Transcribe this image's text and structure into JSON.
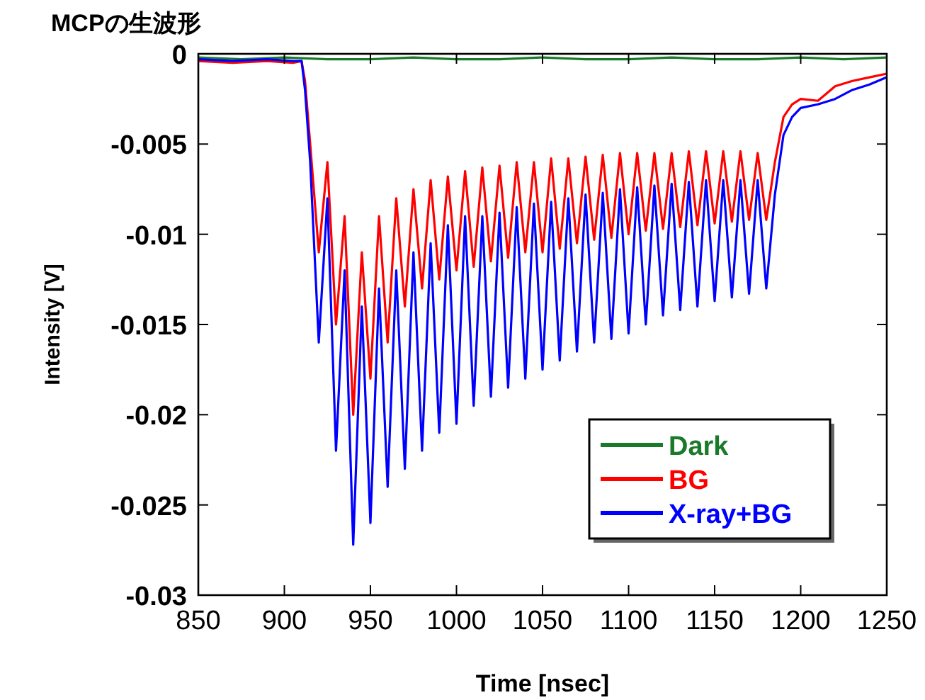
{
  "chart_data": {
    "type": "line",
    "title": "MCPの生波形",
    "xlabel": "Time [nsec]",
    "ylabel": "Intensity [V]",
    "xlim": [
      850,
      1250
    ],
    "ylim": [
      -0.03,
      0
    ],
    "xticks": [
      850,
      900,
      950,
      1000,
      1050,
      1100,
      1150,
      1200,
      1250
    ],
    "yticks": [
      -0.03,
      -0.025,
      -0.02,
      -0.015,
      -0.01,
      -0.005,
      0
    ],
    "legend": "bottom right",
    "x": [
      850,
      870,
      890,
      905,
      910,
      912,
      915,
      920,
      925,
      930,
      935,
      940,
      945,
      950,
      955,
      960,
      965,
      970,
      975,
      980,
      985,
      990,
      995,
      1000,
      1005,
      1010,
      1015,
      1020,
      1025,
      1030,
      1035,
      1040,
      1045,
      1050,
      1055,
      1060,
      1065,
      1070,
      1075,
      1080,
      1085,
      1090,
      1095,
      1100,
      1105,
      1110,
      1115,
      1120,
      1125,
      1130,
      1135,
      1140,
      1145,
      1150,
      1155,
      1160,
      1165,
      1170,
      1175,
      1180,
      1185,
      1190,
      1195,
      1200,
      1210,
      1220,
      1230,
      1240,
      1250
    ],
    "series": [
      {
        "name": "Dark",
        "color": "#1a7a2a",
        "x": [
          850,
          875,
          900,
          925,
          950,
          975,
          1000,
          1025,
          1050,
          1075,
          1100,
          1125,
          1150,
          1175,
          1200,
          1225,
          1250
        ],
        "values": [
          -0.0002,
          -0.0003,
          -0.0002,
          -0.0003,
          -0.0003,
          -0.0002,
          -0.0003,
          -0.0003,
          -0.0002,
          -0.0003,
          -0.0003,
          -0.0002,
          -0.0003,
          -0.0003,
          -0.0002,
          -0.0003,
          -0.0002
        ]
      },
      {
        "name": "BG",
        "color": "#ff0000",
        "values": [
          -0.0004,
          -0.0005,
          -0.0004,
          -0.0005,
          -0.0004,
          -0.0015,
          -0.005,
          -0.011,
          -0.006,
          -0.015,
          -0.009,
          -0.02,
          -0.011,
          -0.018,
          -0.009,
          -0.016,
          -0.008,
          -0.014,
          -0.0075,
          -0.013,
          -0.007,
          -0.0125,
          -0.0068,
          -0.012,
          -0.0065,
          -0.0118,
          -0.0063,
          -0.0115,
          -0.0062,
          -0.0113,
          -0.006,
          -0.011,
          -0.006,
          -0.011,
          -0.0058,
          -0.0108,
          -0.0058,
          -0.0105,
          -0.0057,
          -0.0103,
          -0.0056,
          -0.0102,
          -0.0055,
          -0.01,
          -0.0055,
          -0.0098,
          -0.0055,
          -0.0097,
          -0.0055,
          -0.0096,
          -0.0054,
          -0.0095,
          -0.0054,
          -0.0094,
          -0.0054,
          -0.0093,
          -0.0054,
          -0.0092,
          -0.0055,
          -0.0092,
          -0.006,
          -0.0035,
          -0.0028,
          -0.0025,
          -0.0026,
          -0.0018,
          -0.0015,
          -0.0013,
          -0.0011
        ]
      },
      {
        "name": "X-ray+BG",
        "color": "#0000ff",
        "values": [
          -0.0003,
          -0.0004,
          -0.0003,
          -0.0004,
          -0.0004,
          -0.002,
          -0.006,
          -0.016,
          -0.008,
          -0.022,
          -0.012,
          -0.0272,
          -0.014,
          -0.026,
          -0.013,
          -0.024,
          -0.012,
          -0.023,
          -0.011,
          -0.022,
          -0.0105,
          -0.021,
          -0.0095,
          -0.0205,
          -0.009,
          -0.0195,
          -0.009,
          -0.019,
          -0.0088,
          -0.0185,
          -0.0085,
          -0.018,
          -0.0083,
          -0.0175,
          -0.0082,
          -0.017,
          -0.008,
          -0.0165,
          -0.0078,
          -0.016,
          -0.0077,
          -0.0158,
          -0.0075,
          -0.0155,
          -0.0074,
          -0.015,
          -0.0073,
          -0.0145,
          -0.0072,
          -0.0142,
          -0.0071,
          -0.014,
          -0.007,
          -0.0137,
          -0.007,
          -0.0135,
          -0.007,
          -0.0133,
          -0.007,
          -0.013,
          -0.0078,
          -0.0045,
          -0.0035,
          -0.003,
          -0.0028,
          -0.0025,
          -0.002,
          -0.0017,
          -0.0013
        ]
      }
    ]
  }
}
